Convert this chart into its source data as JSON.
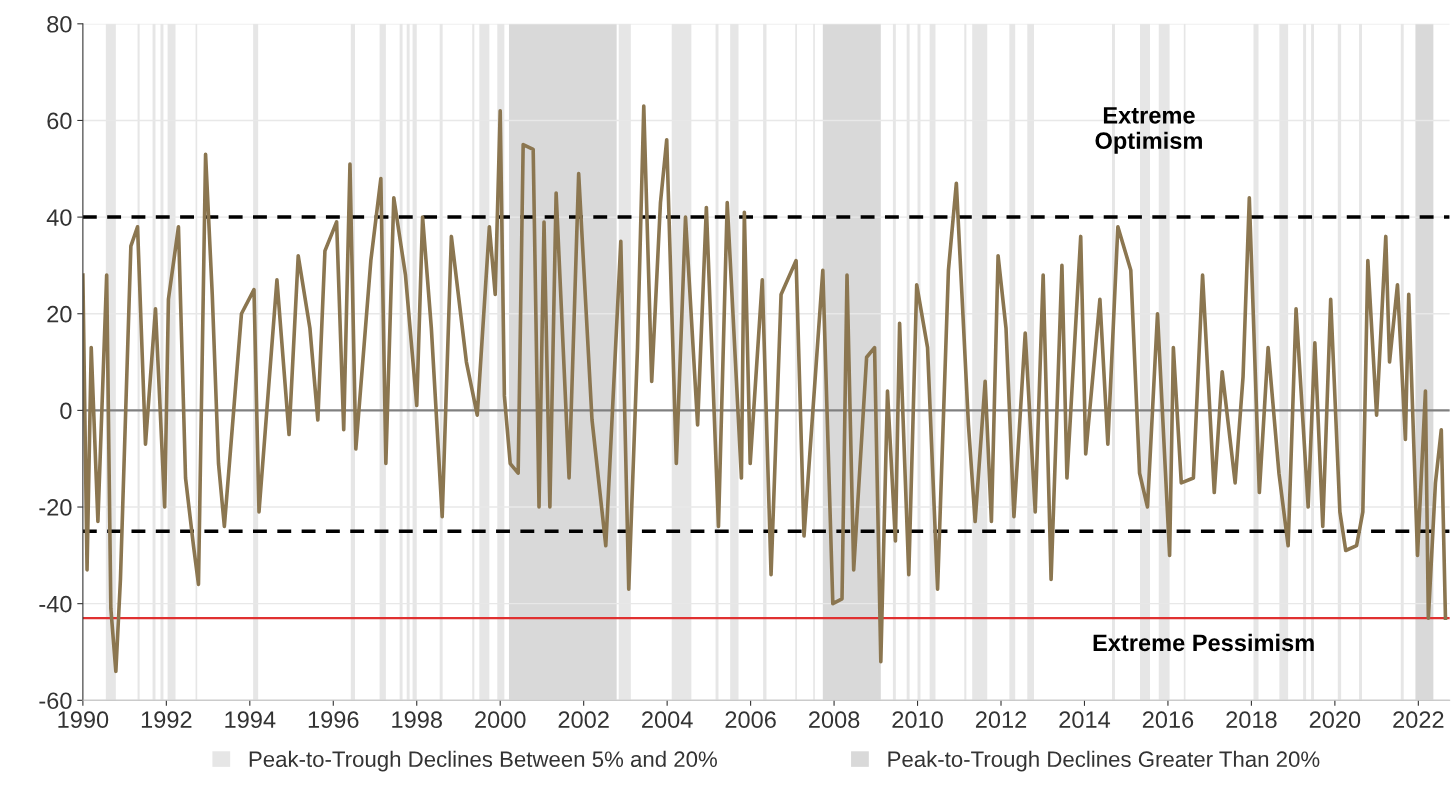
{
  "chart_data": {
    "type": "line",
    "x": [
      1990.0,
      1990.1,
      1990.2,
      1990.36,
      1990.57,
      1990.67,
      1990.79,
      1990.9,
      1991.03,
      1991.15,
      1991.31,
      1991.5,
      1991.74,
      1991.96,
      1992.05,
      1992.29,
      1992.46,
      1992.65,
      1992.77,
      1992.94,
      1993.1,
      1993.25,
      1993.39,
      1993.8,
      1994.1,
      1994.22,
      1994.65,
      1994.94,
      1995.16,
      1995.44,
      1995.63,
      1995.8,
      1996.08,
      1996.25,
      1996.4,
      1996.54,
      1996.9,
      1997.14,
      1997.26,
      1997.45,
      1997.73,
      1998.0,
      1998.14,
      1998.35,
      1998.61,
      1998.83,
      1999.19,
      1999.45,
      1999.74,
      1999.88,
      2000.0,
      2000.1,
      2000.24,
      2000.43,
      2000.55,
      2000.79,
      2000.93,
      2001.05,
      2001.19,
      2001.34,
      2001.65,
      2001.88,
      2002.2,
      2002.53,
      2002.89,
      2003.08,
      2003.29,
      2003.44,
      2003.63,
      2003.84,
      2003.99,
      2004.22,
      2004.44,
      2004.73,
      2004.94,
      2005.23,
      2005.44,
      2005.78,
      2005.85,
      2005.99,
      2006.28,
      2006.49,
      2006.73,
      2007.09,
      2007.28,
      2007.73,
      2007.97,
      2008.19,
      2008.31,
      2008.47,
      2008.78,
      2008.97,
      2009.12,
      2009.28,
      2009.47,
      2009.57,
      2009.79,
      2009.98,
      2010.24,
      2010.48,
      2010.74,
      2010.93,
      2011.22,
      2011.38,
      2011.62,
      2011.77,
      2011.93,
      2012.12,
      2012.31,
      2012.58,
      2012.82,
      2013.01,
      2013.2,
      2013.46,
      2013.58,
      2013.91,
      2014.03,
      2014.37,
      2014.56,
      2014.8,
      2015.11,
      2015.32,
      2015.51,
      2015.75,
      2016.04,
      2016.13,
      2016.32,
      2016.61,
      2016.83,
      2017.11,
      2017.3,
      2017.61,
      2017.8,
      2017.95,
      2018.19,
      2018.4,
      2018.66,
      2018.88,
      2019.07,
      2019.36,
      2019.52,
      2019.71,
      2019.9,
      2020.12,
      2020.26,
      2020.52,
      2020.67,
      2020.79,
      2021.0,
      2021.22,
      2021.31,
      2021.5,
      2021.69,
      2021.77,
      2021.98,
      2022.17,
      2022.24,
      2022.41,
      2022.55,
      2022.65
    ],
    "series": [
      {
        "color": "#8b7650",
        "values": [
          28,
          -33,
          13,
          -23,
          28,
          -41,
          -54,
          -35,
          1,
          34,
          38,
          -7,
          21,
          -20,
          23,
          38,
          -14,
          -28,
          -36,
          53,
          24,
          -11,
          -24,
          20,
          25,
          -21,
          27,
          -5,
          32,
          17,
          -2,
          33,
          39,
          -4,
          51,
          -8,
          31,
          48,
          -11,
          44,
          28,
          1,
          40,
          17,
          -22,
          36,
          10,
          -1,
          38,
          24,
          62,
          3,
          -11,
          -13,
          55,
          54,
          -20,
          39,
          -20,
          45,
          -14,
          49,
          -2,
          -28,
          35,
          -37,
          13,
          63,
          6,
          43,
          56,
          -11,
          40,
          -3,
          42,
          -24,
          43,
          -14,
          41,
          -11,
          27,
          -34,
          24,
          31,
          -26,
          29,
          -40,
          -39,
          28,
          -33,
          11,
          13,
          -52,
          4,
          -27,
          18,
          -34,
          26,
          13,
          -37,
          29,
          47,
          -3,
          -23,
          6,
          -23,
          32,
          17,
          -22,
          16,
          -21,
          28,
          -35,
          30,
          -14,
          36,
          -9,
          23,
          -7,
          38,
          29,
          -13,
          -20,
          20,
          -30,
          13,
          -15,
          -14,
          28,
          -17,
          8,
          -15,
          7,
          44,
          -17,
          13,
          -13,
          -28,
          21,
          -20,
          14,
          -24,
          23,
          -21,
          -29,
          -28,
          -21,
          31,
          -1,
          36,
          10,
          26,
          -6,
          24,
          -30,
          4,
          -43,
          -15,
          -4,
          -43
        ]
      }
    ],
    "xlim": [
      1990,
      2022.75
    ],
    "ylim": [
      -60,
      80
    ],
    "xticks": [
      1990,
      1992,
      1994,
      1996,
      1998,
      2000,
      2002,
      2004,
      2006,
      2008,
      2010,
      2012,
      2014,
      2016,
      2018,
      2020,
      2022
    ],
    "yticks": [
      -60,
      -40,
      -20,
      0,
      20,
      40,
      60,
      80
    ],
    "grid": "y",
    "legend": "bottom",
    "line_style": "solid",
    "marker": "none",
    "ref_lines": [
      {
        "axis": "y",
        "value": 0,
        "color": "#808080",
        "line_style": "solid"
      },
      {
        "axis": "y",
        "value": 40,
        "color": "#000000",
        "line_style": "dashed"
      },
      {
        "axis": "y",
        "value": -25,
        "color": "#000000",
        "line_style": "dashed"
      },
      {
        "axis": "y",
        "value": -43,
        "color": "#e03030",
        "line_style": "solid"
      }
    ],
    "bands": [
      {
        "axis": "x",
        "from": 1990.55,
        "to": 1990.79,
        "color": "#e6e6e6",
        "label": "Peak-to-Trough Declines Between 5% and 20%"
      },
      {
        "axis": "x",
        "from": 1991.31,
        "to": 1991.36,
        "color": "#e6e6e6"
      },
      {
        "axis": "x",
        "from": 1991.67,
        "to": 1991.74,
        "color": "#e6e6e6"
      },
      {
        "axis": "x",
        "from": 1991.86,
        "to": 1991.93,
        "color": "#e6e6e6"
      },
      {
        "axis": "x",
        "from": 1992.03,
        "to": 1992.22,
        "color": "#e6e6e6"
      },
      {
        "axis": "x",
        "from": 1992.7,
        "to": 1992.74,
        "color": "#e6e6e6"
      },
      {
        "axis": "x",
        "from": 1994.08,
        "to": 1994.2,
        "color": "#e6e6e6"
      },
      {
        "axis": "x",
        "from": 1996.42,
        "to": 1996.52,
        "color": "#e6e6e6"
      },
      {
        "axis": "x",
        "from": 1997.11,
        "to": 1997.26,
        "color": "#e6e6e6"
      },
      {
        "axis": "x",
        "from": 1997.59,
        "to": 1997.66,
        "color": "#e6e6e6"
      },
      {
        "axis": "x",
        "from": 1997.76,
        "to": 1997.83,
        "color": "#e6e6e6"
      },
      {
        "axis": "x",
        "from": 1997.9,
        "to": 1998.0,
        "color": "#e6e6e6"
      },
      {
        "axis": "x",
        "from": 1998.55,
        "to": 1998.62,
        "color": "#e6e6e6"
      },
      {
        "axis": "x",
        "from": 1999.33,
        "to": 1999.38,
        "color": "#e6e6e6"
      },
      {
        "axis": "x",
        "from": 1999.5,
        "to": 1999.74,
        "color": "#e6e6e6"
      },
      {
        "axis": "x",
        "from": 1999.93,
        "to": 2000.1,
        "color": "#e6e6e6"
      },
      {
        "axis": "x",
        "from": 2000.21,
        "to": 2002.79,
        "color": "#d9d9d9",
        "label": "Peak-to-Trough Declines Greater Than 20%"
      },
      {
        "axis": "x",
        "from": 2002.84,
        "to": 2003.13,
        "color": "#e6e6e6"
      },
      {
        "axis": "x",
        "from": 2004.11,
        "to": 2004.58,
        "color": "#e6e6e6"
      },
      {
        "axis": "x",
        "from": 2005.16,
        "to": 2005.23,
        "color": "#e6e6e6"
      },
      {
        "axis": "x",
        "from": 2005.51,
        "to": 2005.71,
        "color": "#e6e6e6"
      },
      {
        "axis": "x",
        "from": 2006.3,
        "to": 2006.38,
        "color": "#e6e6e6"
      },
      {
        "axis": "x",
        "from": 2007.07,
        "to": 2007.11,
        "color": "#e6e6e6"
      },
      {
        "axis": "x",
        "from": 2007.5,
        "to": 2007.54,
        "color": "#e6e6e6"
      },
      {
        "axis": "x",
        "from": 2007.73,
        "to": 2009.12,
        "color": "#d9d9d9"
      },
      {
        "axis": "x",
        "from": 2009.41,
        "to": 2009.48,
        "color": "#e6e6e6"
      },
      {
        "axis": "x",
        "from": 2009.74,
        "to": 2009.81,
        "color": "#e6e6e6"
      },
      {
        "axis": "x",
        "from": 2010.0,
        "to": 2010.07,
        "color": "#e6e6e6"
      },
      {
        "axis": "x",
        "from": 2010.29,
        "to": 2010.43,
        "color": "#e6e6e6"
      },
      {
        "axis": "x",
        "from": 2011.12,
        "to": 2011.17,
        "color": "#e6e6e6"
      },
      {
        "axis": "x",
        "from": 2011.31,
        "to": 2011.67,
        "color": "#e6e6e6"
      },
      {
        "axis": "x",
        "from": 2012.2,
        "to": 2012.34,
        "color": "#e6e6e6"
      },
      {
        "axis": "x",
        "from": 2012.63,
        "to": 2012.79,
        "color": "#e6e6e6"
      },
      {
        "axis": "x",
        "from": 2014.66,
        "to": 2014.73,
        "color": "#e6e6e6"
      },
      {
        "axis": "x",
        "from": 2015.33,
        "to": 2015.57,
        "color": "#e6e6e6"
      },
      {
        "axis": "x",
        "from": 2015.78,
        "to": 2016.04,
        "color": "#e6e6e6"
      },
      {
        "axis": "x",
        "from": 2016.38,
        "to": 2016.42,
        "color": "#e6e6e6"
      },
      {
        "axis": "x",
        "from": 2018.05,
        "to": 2018.17,
        "color": "#e6e6e6"
      },
      {
        "axis": "x",
        "from": 2018.67,
        "to": 2018.88,
        "color": "#e6e6e6"
      },
      {
        "axis": "x",
        "from": 2019.24,
        "to": 2019.31,
        "color": "#e6e6e6"
      },
      {
        "axis": "x",
        "from": 2019.43,
        "to": 2019.5,
        "color": "#e6e6e6"
      },
      {
        "axis": "x",
        "from": 2020.07,
        "to": 2020.15,
        "color": "#e6e6e6"
      },
      {
        "axis": "x",
        "from": 2020.58,
        "to": 2020.65,
        "color": "#e6e6e6"
      },
      {
        "axis": "x",
        "from": 2021.58,
        "to": 2021.65,
        "color": "#e6e6e6"
      },
      {
        "axis": "x",
        "from": 2021.93,
        "to": 2022.36,
        "color": "#d9d9d9"
      }
    ],
    "annotations": [
      "Extreme\nOptimism",
      "Extreme Pessimism"
    ]
  }
}
